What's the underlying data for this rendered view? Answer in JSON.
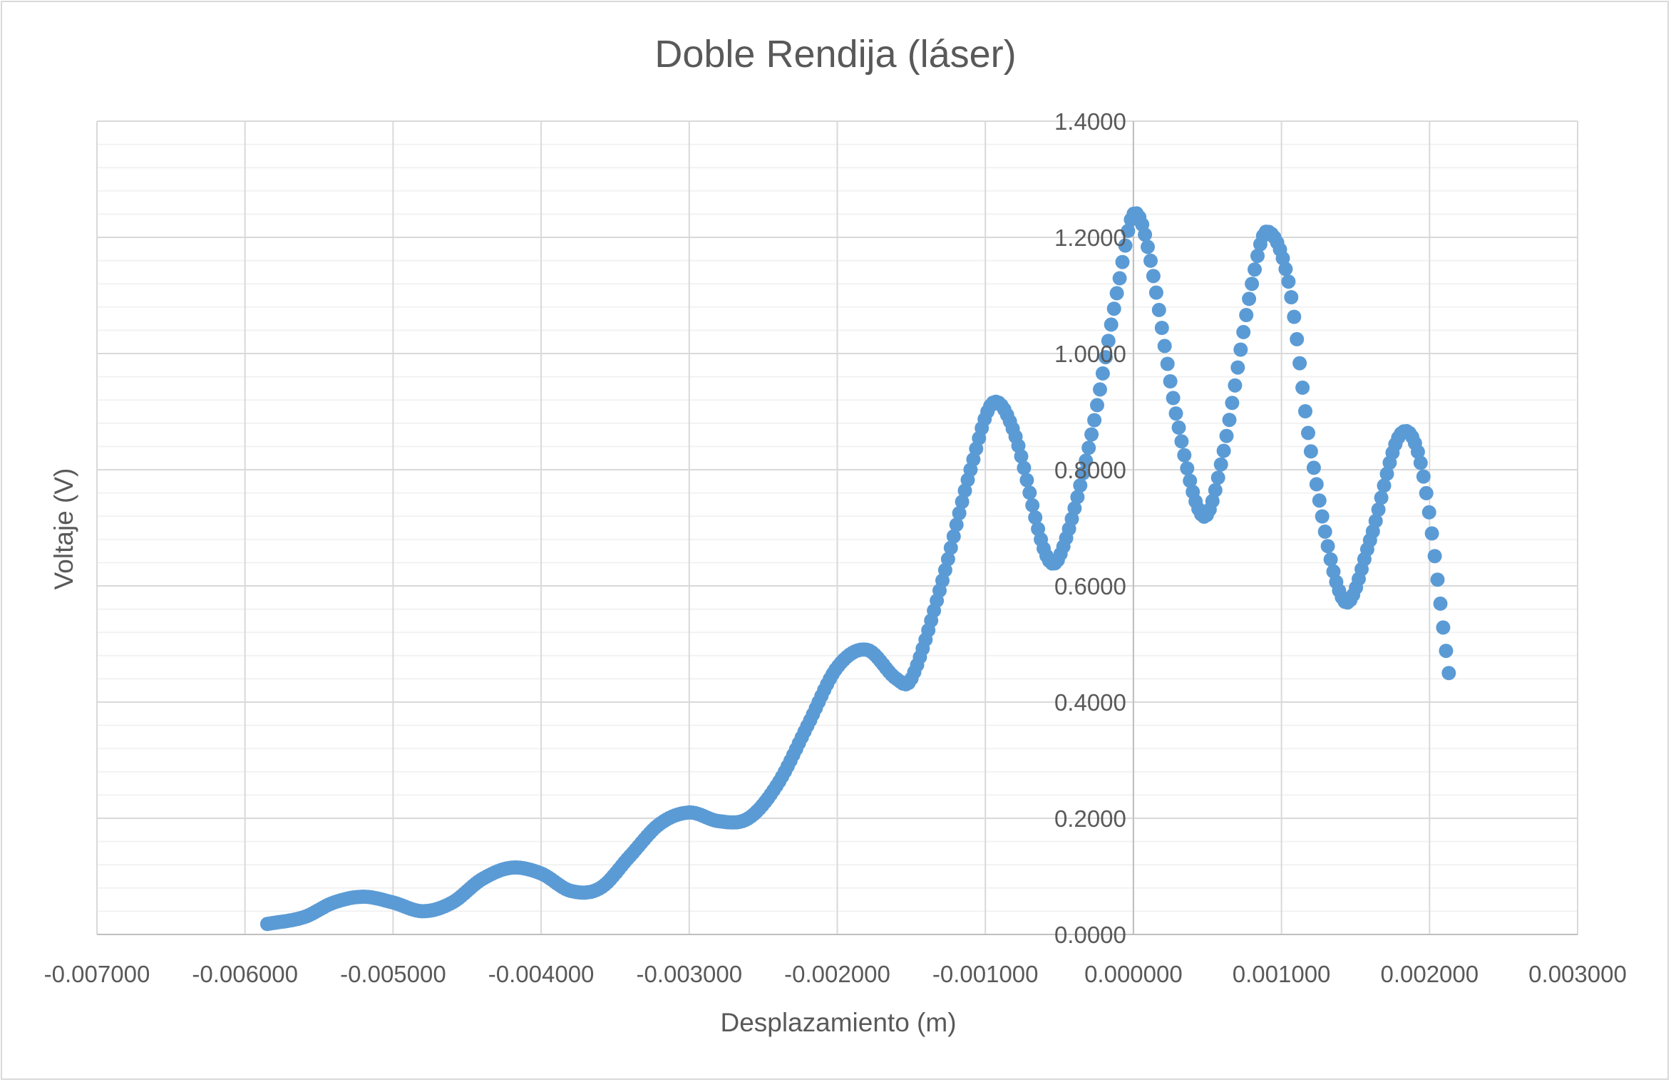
{
  "chart_data": {
    "type": "scatter",
    "title": "Doble Rendija (láser)",
    "xlabel": "Desplazamiento (m)",
    "ylabel": "Voltaje (V)",
    "xlim": [
      -0.007,
      0.003
    ],
    "ylim": [
      0,
      1.4
    ],
    "x_major_step": 0.001,
    "y_major_step": 0.2,
    "y_minor_step": 0.04,
    "x_ticks": [
      "-0.007000",
      "-0.006000",
      "-0.005000",
      "-0.004000",
      "-0.003000",
      "-0.002000",
      "-0.001000",
      "0.000000",
      "0.001000",
      "0.002000",
      "0.003000"
    ],
    "y_ticks": [
      "0.0000",
      "0.2000",
      "0.4000",
      "0.6000",
      "0.8000",
      "1.0000",
      "1.2000",
      "1.4000"
    ],
    "grid": true,
    "legend": "none",
    "marker_color": "#5b9bd5",
    "series_anchors": [
      [
        -0.00585,
        0.018
      ],
      [
        -0.0056,
        0.03
      ],
      [
        -0.0054,
        0.055
      ],
      [
        -0.0052,
        0.065
      ],
      [
        -0.005,
        0.055
      ],
      [
        -0.0048,
        0.04
      ],
      [
        -0.0046,
        0.055
      ],
      [
        -0.0044,
        0.095
      ],
      [
        -0.0042,
        0.115
      ],
      [
        -0.004,
        0.105
      ],
      [
        -0.0038,
        0.075
      ],
      [
        -0.0036,
        0.08
      ],
      [
        -0.0034,
        0.135
      ],
      [
        -0.0032,
        0.19
      ],
      [
        -0.003,
        0.21
      ],
      [
        -0.0028,
        0.195
      ],
      [
        -0.0026,
        0.2
      ],
      [
        -0.0024,
        0.26
      ],
      [
        -0.0022,
        0.36
      ],
      [
        -0.002,
        0.46
      ],
      [
        -0.0018,
        0.49
      ],
      [
        -0.0016,
        0.44
      ],
      [
        -0.0015,
        0.44
      ],
      [
        -0.0013,
        0.6
      ],
      [
        -0.0011,
        0.8
      ],
      [
        -0.00095,
        0.915
      ],
      [
        -0.0008,
        0.86
      ],
      [
        -0.0006,
        0.66
      ],
      [
        -0.0005,
        0.65
      ],
      [
        -0.0003,
        0.84
      ],
      [
        -0.0001,
        1.12
      ],
      [
        0.0,
        1.24
      ],
      [
        0.0001,
        1.18
      ],
      [
        0.0003,
        0.88
      ],
      [
        0.00047,
        0.72
      ],
      [
        0.0006,
        0.82
      ],
      [
        0.0008,
        1.12
      ],
      [
        0.0009,
        1.21
      ],
      [
        0.00105,
        1.12
      ],
      [
        0.0012,
        0.83
      ],
      [
        0.00142,
        0.575
      ],
      [
        0.0016,
        0.68
      ],
      [
        0.0018,
        0.86
      ],
      [
        0.00195,
        0.8
      ],
      [
        0.00213,
        0.45
      ]
    ]
  }
}
